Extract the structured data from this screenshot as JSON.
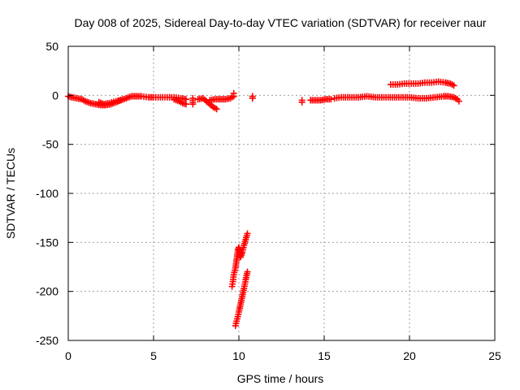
{
  "chart_data": {
    "type": "scatter",
    "title": "Day 008 of 2025, Sidereal Day-to-day VTEC variation (SDTVAR) for receiver naur",
    "xlabel": "GPS time / hours",
    "ylabel": "SDTVAR / TECUs",
    "xlim": [
      0,
      25
    ],
    "ylim": [
      -250,
      50
    ],
    "xticks": [
      0,
      5,
      10,
      15,
      20,
      25
    ],
    "yticks": [
      -250,
      -200,
      -150,
      -100,
      -50,
      0,
      50
    ],
    "grid": true,
    "marker": "+",
    "colors": {
      "series": "#ff0000",
      "grid": "#a0a0a0",
      "axes": "#000000"
    },
    "series": [
      {
        "segments": [
          [
            [
              0.0,
              -1
            ],
            [
              0.2,
              -2
            ],
            [
              0.5,
              -3
            ],
            [
              0.8,
              -4
            ],
            [
              1.0,
              -6
            ],
            [
              1.3,
              -8
            ],
            [
              1.6,
              -9
            ],
            [
              1.9,
              -10
            ],
            [
              2.2,
              -10
            ],
            [
              2.5,
              -9
            ],
            [
              2.8,
              -7
            ],
            [
              3.1,
              -5
            ],
            [
              3.4,
              -3
            ],
            [
              3.7,
              -1
            ],
            [
              4.0,
              -1
            ],
            [
              4.3,
              -1
            ],
            [
              4.7,
              -2
            ],
            [
              5.0,
              -2
            ],
            [
              5.4,
              -2
            ],
            [
              5.8,
              -2
            ],
            [
              6.2,
              -2
            ],
            [
              6.6,
              -3
            ],
            [
              6.9,
              -4
            ]
          ],
          [
            [
              1.8,
              -7
            ],
            [
              2.1,
              -9
            ],
            [
              2.4,
              -8
            ],
            [
              2.8,
              -6
            ],
            [
              3.2,
              -4
            ]
          ],
          [
            [
              6.2,
              -4
            ],
            [
              6.5,
              -6
            ],
            [
              6.7,
              -8
            ],
            [
              6.9,
              -9
            ]
          ],
          [
            [
              7.3,
              -3
            ],
            [
              7.3,
              -5
            ],
            [
              7.3,
              -7
            ],
            [
              7.3,
              -9
            ]
          ],
          [
            [
              7.6,
              -4
            ],
            [
              7.9,
              -3
            ],
            [
              8.1,
              -6
            ],
            [
              8.3,
              -9
            ],
            [
              8.5,
              -12
            ],
            [
              8.7,
              -14
            ]
          ],
          [
            [
              8.3,
              -5
            ],
            [
              8.6,
              -4
            ],
            [
              8.9,
              -4
            ],
            [
              9.2,
              -4
            ],
            [
              9.5,
              -3
            ],
            [
              9.7,
              -1
            ],
            [
              9.7,
              2
            ]
          ],
          [
            [
              9.8,
              -235
            ],
            [
              9.9,
              -228
            ],
            [
              10.0,
              -221
            ],
            [
              10.1,
              -213
            ],
            [
              10.2,
              -205
            ],
            [
              10.3,
              -197
            ],
            [
              10.4,
              -188
            ],
            [
              10.5,
              -180
            ]
          ],
          [
            [
              9.6,
              -195
            ],
            [
              9.65,
              -190
            ],
            [
              9.7,
              -183
            ],
            [
              9.8,
              -176
            ],
            [
              9.85,
              -170
            ],
            [
              9.9,
              -164
            ],
            [
              9.95,
              -158
            ],
            [
              10.0,
              -155
            ],
            [
              10.1,
              -165
            ],
            [
              10.2,
              -160
            ],
            [
              10.3,
              -153
            ],
            [
              10.4,
              -147
            ],
            [
              10.5,
              -141
            ]
          ],
          [
            [
              10.8,
              -1
            ],
            [
              10.8,
              -3
            ]
          ],
          [
            [
              13.7,
              -5
            ],
            [
              13.7,
              -7
            ]
          ],
          [
            [
              14.2,
              -5
            ],
            [
              14.5,
              -5
            ],
            [
              14.8,
              -5
            ],
            [
              15.1,
              -4
            ],
            [
              15.4,
              -4
            ]
          ],
          [
            [
              15.6,
              -3
            ],
            [
              16.0,
              -2
            ],
            [
              16.5,
              -2
            ],
            [
              17.0,
              -2
            ],
            [
              17.5,
              -1
            ],
            [
              18.0,
              -2
            ],
            [
              18.5,
              -2
            ],
            [
              19.0,
              -2
            ],
            [
              19.5,
              -2
            ],
            [
              20.0,
              -2
            ],
            [
              20.5,
              -3
            ],
            [
              21.0,
              -3
            ],
            [
              21.5,
              -2
            ],
            [
              22.0,
              -1
            ],
            [
              22.3,
              -1
            ],
            [
              22.6,
              -2
            ],
            [
              22.8,
              -4
            ],
            [
              22.9,
              -6
            ]
          ],
          [
            [
              18.9,
              11
            ],
            [
              19.3,
              11
            ],
            [
              19.7,
              12
            ],
            [
              20.1,
              12
            ],
            [
              20.5,
              12
            ],
            [
              20.9,
              13
            ],
            [
              21.3,
              13
            ],
            [
              21.7,
              14
            ],
            [
              22.1,
              13
            ],
            [
              22.4,
              12
            ],
            [
              22.6,
              10
            ]
          ]
        ]
      }
    ]
  }
}
